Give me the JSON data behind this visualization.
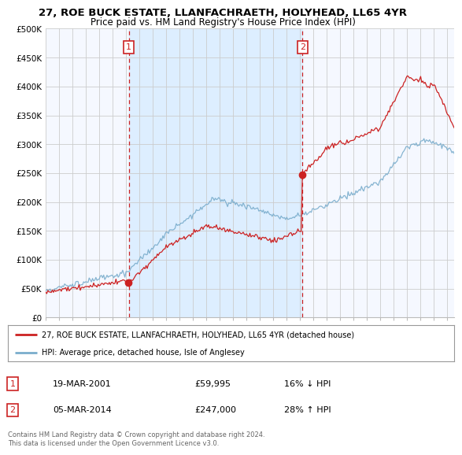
{
  "title": "27, ROE BUCK ESTATE, LLANFACHRAETH, HOLYHEAD, LL65 4YR",
  "subtitle": "Price paid vs. HM Land Registry's House Price Index (HPI)",
  "ylabel_ticks": [
    "£0",
    "£50K",
    "£100K",
    "£150K",
    "£200K",
    "£250K",
    "£300K",
    "£350K",
    "£400K",
    "£450K",
    "£500K"
  ],
  "ytick_values": [
    0,
    50000,
    100000,
    150000,
    200000,
    250000,
    300000,
    350000,
    400000,
    450000,
    500000
  ],
  "ylim": [
    0,
    500000
  ],
  "xlim_start": 1995.0,
  "xlim_end": 2025.5,
  "red_vlines": [
    2001.2,
    2014.17
  ],
  "sale1_x": 2001.2,
  "sale1_y": 59995,
  "sale1_date": "19-MAR-2001",
  "sale1_price": "£59,995",
  "sale1_hpi": "16% ↓ HPI",
  "sale2_x": 2014.17,
  "sale2_y": 247000,
  "sale2_date": "05-MAR-2014",
  "sale2_price": "£247,000",
  "sale2_hpi": "28% ↑ HPI",
  "legend_line1": "27, ROE BUCK ESTATE, LLANFACHRAETH, HOLYHEAD, LL65 4YR (detached house)",
  "legend_line2": "HPI: Average price, detached house, Isle of Anglesey",
  "footer": "Contains HM Land Registry data © Crown copyright and database right 2024.\nThis data is licensed under the Open Government Licence v3.0.",
  "line_color_red": "#cc2222",
  "line_color_blue": "#7aadcc",
  "shade_color": "#ddeeff",
  "background_color": "#f5f8ff",
  "grid_color": "#cccccc"
}
